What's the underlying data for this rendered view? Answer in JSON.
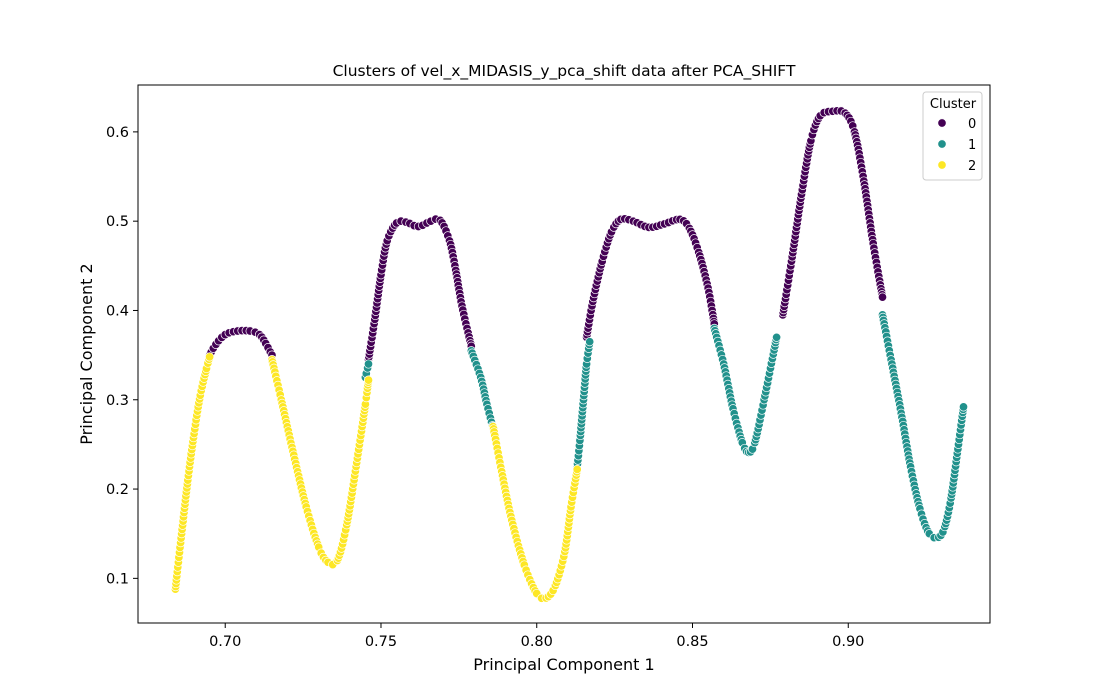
{
  "chart_data": {
    "type": "scatter",
    "title": "Clusters of vel_x_MIDASIS_y_pca_shift data after PCA_SHIFT",
    "xlabel": "Principal Component 1",
    "ylabel": "Principal Component 2",
    "xlim": [
      0.672,
      0.9455
    ],
    "ylim": [
      0.05,
      0.6525
    ],
    "xticks": [
      0.7,
      0.75,
      0.8,
      0.85,
      0.9
    ],
    "xtick_labels": [
      "0.70",
      "0.75",
      "0.80",
      "0.85",
      "0.90"
    ],
    "yticks": [
      0.1,
      0.2,
      0.3,
      0.4,
      0.5,
      0.6
    ],
    "ytick_labels": [
      "0.1",
      "0.2",
      "0.3",
      "0.4",
      "0.5",
      "0.6"
    ],
    "grid": false,
    "legend": {
      "title": "Cluster",
      "position": "top-right",
      "entries": [
        {
          "label": "0",
          "color": "#440154"
        },
        {
          "label": "1",
          "color": "#21918c"
        },
        {
          "label": "2",
          "color": "#fde725"
        }
      ]
    },
    "curve_description": "dense sampled trajectory; points listed as [x, y] anchors along the path",
    "series": [
      {
        "name": "0",
        "color": "#440154",
        "segments": [
          [
            [
              0.695,
              0.35
            ],
            [
              0.697,
              0.362
            ],
            [
              0.7,
              0.373
            ],
            [
              0.704,
              0.377
            ],
            [
              0.708,
              0.377
            ],
            [
              0.711,
              0.373
            ],
            [
              0.713,
              0.363
            ],
            [
              0.715,
              0.35
            ]
          ],
          [
            [
              0.746,
              0.345
            ],
            [
              0.748,
              0.39
            ],
            [
              0.75,
              0.44
            ],
            [
              0.752,
              0.478
            ],
            [
              0.755,
              0.498
            ],
            [
              0.758,
              0.499
            ],
            [
              0.762,
              0.494
            ],
            [
              0.766,
              0.5
            ],
            [
              0.769,
              0.501
            ],
            [
              0.772,
              0.478
            ],
            [
              0.774,
              0.445
            ],
            [
              0.776,
              0.405
            ],
            [
              0.779,
              0.36
            ]
          ],
          [
            [
              0.816,
              0.37
            ],
            [
              0.818,
              0.41
            ],
            [
              0.821,
              0.455
            ],
            [
              0.824,
              0.488
            ],
            [
              0.827,
              0.502
            ],
            [
              0.831,
              0.5
            ],
            [
              0.836,
              0.493
            ],
            [
              0.841,
              0.497
            ],
            [
              0.846,
              0.502
            ],
            [
              0.849,
              0.492
            ],
            [
              0.852,
              0.465
            ],
            [
              0.855,
              0.425
            ],
            [
              0.857,
              0.385
            ]
          ],
          [
            [
              0.879,
              0.395
            ],
            [
              0.882,
              0.46
            ],
            [
              0.885,
              0.53
            ],
            [
              0.888,
              0.59
            ],
            [
              0.891,
              0.618
            ],
            [
              0.895,
              0.623
            ],
            [
              0.899,
              0.621
            ],
            [
              0.902,
              0.6
            ],
            [
              0.905,
              0.545
            ],
            [
              0.908,
              0.475
            ],
            [
              0.911,
              0.415
            ]
          ]
        ]
      },
      {
        "name": "1",
        "color": "#21918c",
        "segments": [
          [
            [
              0.745,
              0.325
            ],
            [
              0.746,
              0.34
            ]
          ],
          [
            [
              0.779,
              0.355
            ],
            [
              0.782,
              0.325
            ],
            [
              0.784,
              0.295
            ],
            [
              0.786,
              0.268
            ]
          ],
          [
            [
              0.813,
              0.225
            ],
            [
              0.814,
              0.26
            ],
            [
              0.815,
              0.3
            ],
            [
              0.816,
              0.34
            ],
            [
              0.817,
              0.365
            ]
          ],
          [
            [
              0.857,
              0.38
            ],
            [
              0.86,
              0.34
            ],
            [
              0.863,
              0.29
            ],
            [
              0.866,
              0.252
            ],
            [
              0.868,
              0.241
            ],
            [
              0.87,
              0.252
            ],
            [
              0.873,
              0.3
            ],
            [
              0.877,
              0.37
            ]
          ],
          [
            [
              0.911,
              0.395
            ],
            [
              0.914,
              0.34
            ],
            [
              0.917,
              0.285
            ],
            [
              0.92,
              0.225
            ],
            [
              0.923,
              0.178
            ],
            [
              0.926,
              0.15
            ],
            [
              0.929,
              0.146
            ],
            [
              0.931,
              0.158
            ],
            [
              0.933,
              0.19
            ],
            [
              0.935,
              0.24
            ],
            [
              0.937,
              0.292
            ]
          ]
        ]
      },
      {
        "name": "2",
        "color": "#fde725",
        "segments": [
          [
            [
              0.684,
              0.088
            ],
            [
              0.686,
              0.15
            ],
            [
              0.688,
              0.21
            ],
            [
              0.69,
              0.262
            ],
            [
              0.692,
              0.305
            ],
            [
              0.694,
              0.335
            ],
            [
              0.695,
              0.348
            ]
          ],
          [
            [
              0.715,
              0.345
            ],
            [
              0.718,
              0.3
            ],
            [
              0.722,
              0.238
            ],
            [
              0.726,
              0.18
            ],
            [
              0.73,
              0.135
            ],
            [
              0.733,
              0.118
            ],
            [
              0.736,
              0.12
            ],
            [
              0.739,
              0.16
            ],
            [
              0.742,
              0.225
            ],
            [
              0.745,
              0.295
            ],
            [
              0.746,
              0.322
            ]
          ],
          [
            [
              0.786,
              0.27
            ],
            [
              0.789,
              0.215
            ],
            [
              0.792,
              0.165
            ],
            [
              0.796,
              0.115
            ],
            [
              0.8,
              0.083
            ],
            [
              0.803,
              0.078
            ],
            [
              0.806,
              0.092
            ],
            [
              0.809,
              0.13
            ],
            [
              0.811,
              0.18
            ],
            [
              0.813,
              0.222
            ]
          ]
        ]
      }
    ]
  }
}
